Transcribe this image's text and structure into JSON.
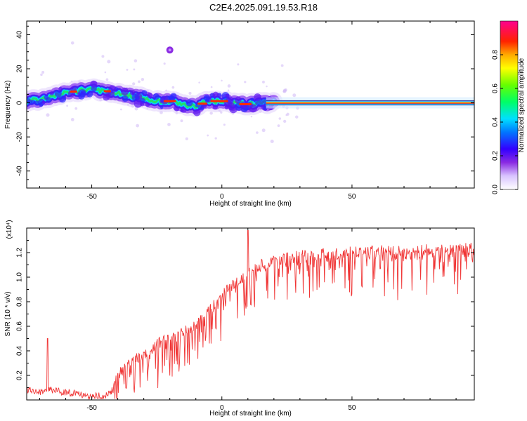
{
  "title": "C2E4.2025.091.19.53.R18",
  "colors": {
    "snr_line": "#f03535",
    "axis": "#000000"
  },
  "chart_data": [
    {
      "type": "heatmap",
      "xlabel": "Height of straight line (km)",
      "ylabel": "Frequency (Hz)",
      "xlim": [
        -75,
        97
      ],
      "ylim": [
        -50,
        48
      ],
      "xticks": [
        -50,
        0,
        50
      ],
      "yticks": [
        -40,
        -20,
        0,
        20,
        40
      ],
      "colorbar": {
        "label": "Normalized spectral amplitude",
        "ticks": [
          "0.0",
          "0.2",
          "0.4",
          "0.6",
          "0.8"
        ],
        "range": [
          0,
          1
        ]
      },
      "ridge": {
        "x": [
          -75,
          -70,
          -65,
          -60,
          -55,
          -50,
          -45,
          -40,
          -35,
          -30,
          -25,
          -20,
          -15,
          -10,
          -5,
          0,
          5,
          10,
          15,
          20,
          97
        ],
        "y": [
          1,
          2,
          4,
          6,
          7,
          8,
          7,
          6,
          4,
          3,
          1,
          1,
          -1,
          -2,
          1,
          1,
          0,
          -1,
          0,
          0,
          0
        ]
      },
      "outlier": {
        "x": -20,
        "y": 31
      }
    },
    {
      "type": "line",
      "xlabel": "Height of straight line (km)",
      "ylabel": "SNR (10 * v/v)",
      "scale_label": "(x10⁴)",
      "xlim": [
        -75,
        97
      ],
      "ylim": [
        0,
        1.4
      ],
      "xticks": [
        -50,
        0,
        50
      ],
      "yticks": [
        "0.2",
        "0.4",
        "0.6",
        "0.8",
        "1.0",
        "1.2"
      ],
      "ytick_values": [
        0.2,
        0.4,
        0.6,
        0.8,
        1.0,
        1.2
      ],
      "envelope": {
        "x": [
          -75,
          -70,
          -65,
          -60,
          -55,
          -50,
          -45,
          -42,
          -40,
          -35,
          -30,
          -25,
          -20,
          -15,
          -10,
          -5,
          0,
          5,
          10,
          15,
          20,
          25,
          30,
          40,
          50,
          60,
          70,
          80,
          90,
          97
        ],
        "y": [
          0.08,
          0.07,
          0.08,
          0.06,
          0.05,
          0.03,
          0.03,
          0.08,
          0.2,
          0.3,
          0.38,
          0.45,
          0.5,
          0.55,
          0.62,
          0.72,
          0.85,
          0.95,
          1.02,
          1.1,
          1.13,
          1.15,
          1.17,
          1.19,
          1.2,
          1.21,
          1.21,
          1.22,
          1.23,
          1.23
        ]
      }
    }
  ]
}
